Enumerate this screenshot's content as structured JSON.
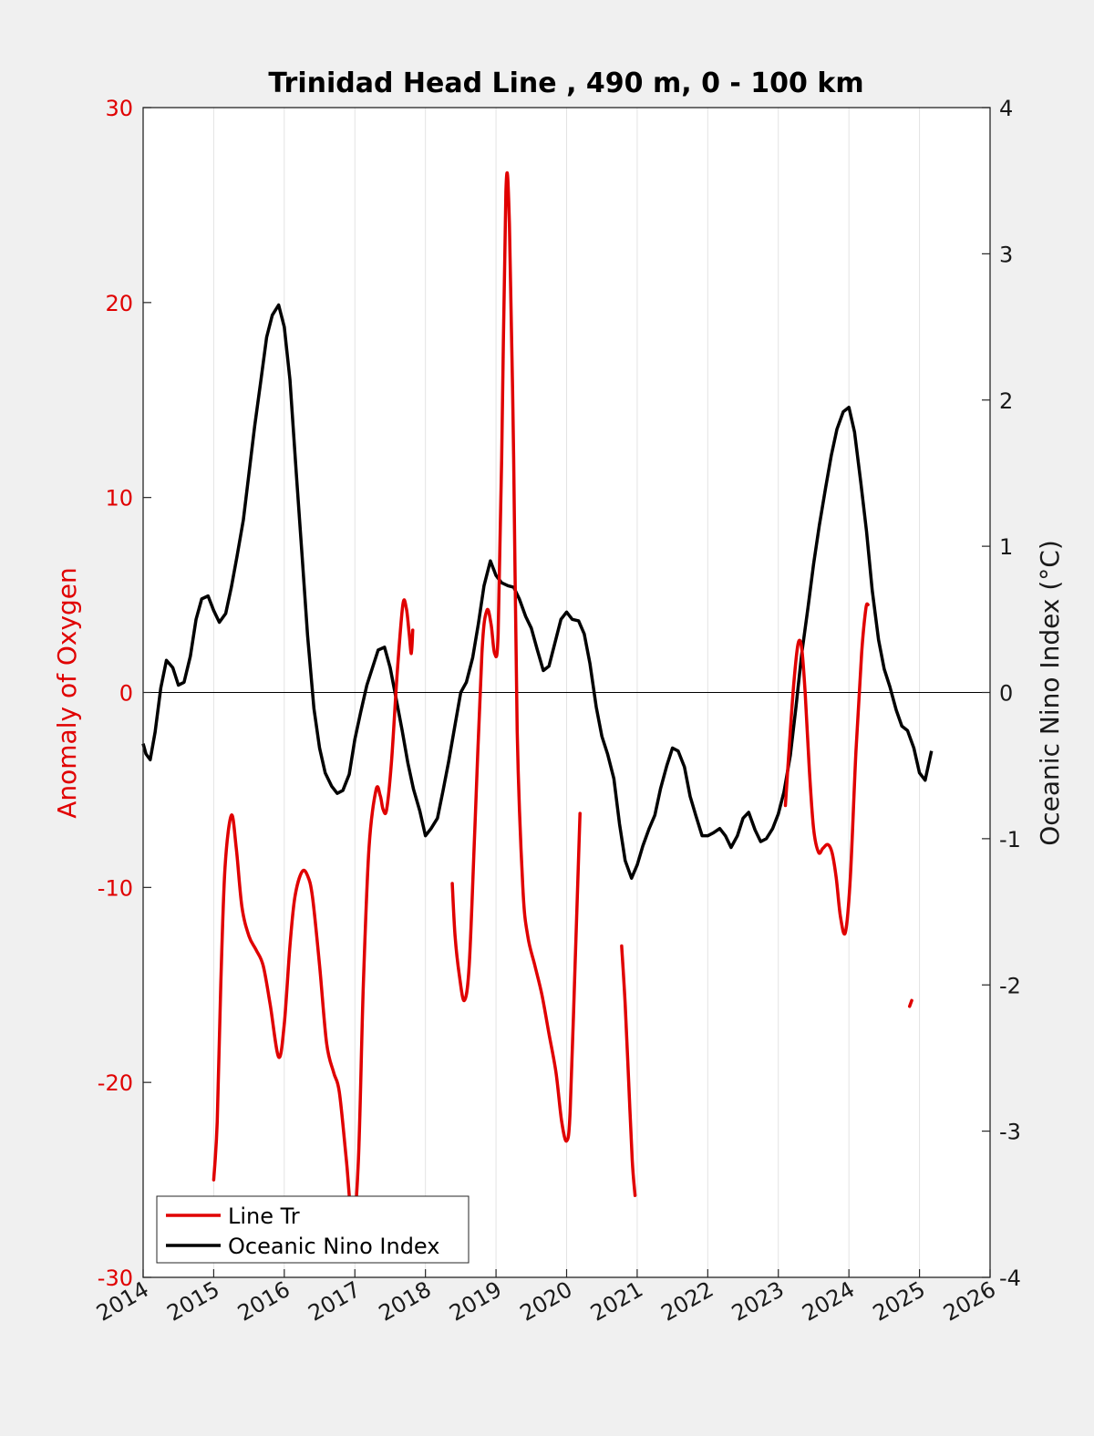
{
  "chart_data": {
    "type": "line",
    "title": "Trinidad Head Line , 490 m, 0 - 100 km",
    "xlabel": "",
    "ylabel_left": "Anomaly of Oxygen",
    "ylabel_right": "Oceanic Nino Index (°C)",
    "xlim": [
      2014,
      2026
    ],
    "ylim_left": [
      -30,
      30
    ],
    "ylim_right": [
      -4,
      4
    ],
    "x_ticks": [
      2014,
      2015,
      2016,
      2017,
      2018,
      2019,
      2020,
      2021,
      2022,
      2023,
      2024,
      2025,
      2026
    ],
    "y_ticks_left": [
      -30,
      -20,
      -10,
      0,
      10,
      20,
      30
    ],
    "y_ticks_right": [
      -4,
      -3,
      -2,
      -1,
      0,
      1,
      2,
      3,
      4
    ],
    "grid": "vertical lines at x ticks",
    "zero_line": true,
    "legend_position": "bottom-left",
    "colors": {
      "oxygen": "#e00000",
      "oni": "#000000"
    },
    "series": [
      {
        "name": "Line Tr",
        "axis": "left",
        "segments": [
          [
            [
              2015.0,
              -25.0
            ],
            [
              2015.05,
              -22.0
            ],
            [
              2015.1,
              -15.0
            ],
            [
              2015.16,
              -9.0
            ],
            [
              2015.25,
              -6.3
            ],
            [
              2015.32,
              -8.0
            ],
            [
              2015.4,
              -11.0
            ],
            [
              2015.5,
              -12.5
            ],
            [
              2015.6,
              -13.2
            ],
            [
              2015.7,
              -14.0
            ],
            [
              2015.8,
              -16.0
            ],
            [
              2015.92,
              -18.7
            ],
            [
              2016.0,
              -17.0
            ],
            [
              2016.08,
              -13.0
            ],
            [
              2016.15,
              -10.5
            ],
            [
              2016.25,
              -9.2
            ],
            [
              2016.33,
              -9.4
            ],
            [
              2016.4,
              -10.5
            ],
            [
              2016.5,
              -14.0
            ],
            [
              2016.6,
              -18.0
            ],
            [
              2016.7,
              -19.5
            ],
            [
              2016.78,
              -20.5
            ],
            [
              2016.88,
              -24.0
            ],
            [
              2016.97,
              -27.3
            ],
            [
              2017.05,
              -24.0
            ],
            [
              2017.12,
              -15.0
            ],
            [
              2017.2,
              -8.0
            ],
            [
              2017.3,
              -5.0
            ],
            [
              2017.36,
              -5.3
            ],
            [
              2017.4,
              -6.0
            ],
            [
              2017.45,
              -6.0
            ],
            [
              2017.52,
              -3.5
            ],
            [
              2017.6,
              1.0
            ],
            [
              2017.68,
              4.5
            ],
            [
              2017.73,
              4.3
            ],
            [
              2017.77,
              3.0
            ],
            [
              2017.8,
              2.0
            ],
            [
              2017.82,
              3.2
            ]
          ],
          [
            [
              2018.38,
              -9.8
            ],
            [
              2018.42,
              -12.5
            ],
            [
              2018.48,
              -14.5
            ],
            [
              2018.55,
              -15.8
            ],
            [
              2018.62,
              -14.0
            ],
            [
              2018.7,
              -7.0
            ],
            [
              2018.8,
              2.0
            ],
            [
              2018.87,
              4.2
            ],
            [
              2018.93,
              3.5
            ],
            [
              2018.98,
              2.0
            ],
            [
              2019.03,
              3.0
            ],
            [
              2019.08,
              12.0
            ],
            [
              2019.14,
              25.7
            ],
            [
              2019.19,
              24.0
            ],
            [
              2019.25,
              12.0
            ],
            [
              2019.3,
              -2.0
            ],
            [
              2019.38,
              -10.0
            ],
            [
              2019.45,
              -12.5
            ],
            [
              2019.55,
              -14.0
            ],
            [
              2019.65,
              -15.5
            ],
            [
              2019.75,
              -17.5
            ],
            [
              2019.85,
              -19.5
            ],
            [
              2019.93,
              -22.0
            ],
            [
              2020.0,
              -23.0
            ],
            [
              2020.05,
              -21.5
            ],
            [
              2020.12,
              -14.0
            ],
            [
              2020.19,
              -6.2
            ]
          ],
          [
            [
              2020.78,
              -13.0
            ],
            [
              2020.83,
              -16.0
            ],
            [
              2020.88,
              -20.0
            ],
            [
              2020.93,
              -24.0
            ],
            [
              2020.97,
              -25.8
            ]
          ],
          [
            [
              2023.1,
              -5.8
            ],
            [
              2023.16,
              -2.5
            ],
            [
              2023.22,
              0.5
            ],
            [
              2023.28,
              2.5
            ],
            [
              2023.33,
              2.3
            ],
            [
              2023.38,
              0.0
            ],
            [
              2023.44,
              -4.0
            ],
            [
              2023.5,
              -7.0
            ],
            [
              2023.57,
              -8.2
            ],
            [
              2023.63,
              -8.0
            ],
            [
              2023.7,
              -7.8
            ],
            [
              2023.76,
              -8.2
            ],
            [
              2023.82,
              -9.5
            ],
            [
              2023.88,
              -11.5
            ],
            [
              2023.95,
              -12.3
            ],
            [
              2024.02,
              -9.5
            ],
            [
              2024.1,
              -3.0
            ],
            [
              2024.18,
              2.0
            ],
            [
              2024.24,
              4.3
            ],
            [
              2024.27,
              4.5
            ]
          ],
          [
            [
              2024.86,
              -16.1
            ],
            [
              2024.89,
              -15.8
            ]
          ]
        ]
      },
      {
        "name": "Oceanic Nino Index",
        "axis": "right",
        "points": [
          [
            2014.0,
            -0.35
          ],
          [
            2014.04,
            -0.42
          ],
          [
            2014.1,
            -0.46
          ],
          [
            2014.17,
            -0.27
          ],
          [
            2014.25,
            0.03
          ],
          [
            2014.33,
            0.22
          ],
          [
            2014.42,
            0.17
          ],
          [
            2014.5,
            0.05
          ],
          [
            2014.58,
            0.07
          ],
          [
            2014.67,
            0.25
          ],
          [
            2014.75,
            0.5
          ],
          [
            2014.83,
            0.64
          ],
          [
            2014.92,
            0.66
          ],
          [
            2015.0,
            0.56
          ],
          [
            2015.08,
            0.48
          ],
          [
            2015.17,
            0.54
          ],
          [
            2015.25,
            0.72
          ],
          [
            2015.33,
            0.93
          ],
          [
            2015.42,
            1.18
          ],
          [
            2015.5,
            1.5
          ],
          [
            2015.58,
            1.82
          ],
          [
            2015.67,
            2.14
          ],
          [
            2015.75,
            2.43
          ],
          [
            2015.83,
            2.58
          ],
          [
            2015.92,
            2.65
          ],
          [
            2016.0,
            2.5
          ],
          [
            2016.08,
            2.14
          ],
          [
            2016.17,
            1.5
          ],
          [
            2016.25,
            0.95
          ],
          [
            2016.33,
            0.39
          ],
          [
            2016.42,
            -0.11
          ],
          [
            2016.5,
            -0.38
          ],
          [
            2016.58,
            -0.55
          ],
          [
            2016.67,
            -0.64
          ],
          [
            2016.75,
            -0.69
          ],
          [
            2016.83,
            -0.67
          ],
          [
            2016.92,
            -0.56
          ],
          [
            2017.0,
            -0.32
          ],
          [
            2017.08,
            -0.14
          ],
          [
            2017.17,
            0.05
          ],
          [
            2017.25,
            0.17
          ],
          [
            2017.33,
            0.29
          ],
          [
            2017.42,
            0.31
          ],
          [
            2017.5,
            0.17
          ],
          [
            2017.58,
            -0.03
          ],
          [
            2017.67,
            -0.26
          ],
          [
            2017.75,
            -0.48
          ],
          [
            2017.83,
            -0.66
          ],
          [
            2017.92,
            -0.81
          ],
          [
            2018.0,
            -0.98
          ],
          [
            2018.08,
            -0.93
          ],
          [
            2018.17,
            -0.86
          ],
          [
            2018.25,
            -0.67
          ],
          [
            2018.33,
            -0.47
          ],
          [
            2018.42,
            -0.22
          ],
          [
            2018.5,
            0.0
          ],
          [
            2018.58,
            0.07
          ],
          [
            2018.67,
            0.24
          ],
          [
            2018.75,
            0.47
          ],
          [
            2018.83,
            0.73
          ],
          [
            2018.92,
            0.9
          ],
          [
            2019.0,
            0.8
          ],
          [
            2019.08,
            0.75
          ],
          [
            2019.17,
            0.73
          ],
          [
            2019.25,
            0.72
          ],
          [
            2019.33,
            0.64
          ],
          [
            2019.42,
            0.52
          ],
          [
            2019.5,
            0.44
          ],
          [
            2019.58,
            0.3
          ],
          [
            2019.67,
            0.15
          ],
          [
            2019.75,
            0.18
          ],
          [
            2019.83,
            0.33
          ],
          [
            2019.92,
            0.5
          ],
          [
            2020.0,
            0.55
          ],
          [
            2020.08,
            0.5
          ],
          [
            2020.17,
            0.49
          ],
          [
            2020.25,
            0.4
          ],
          [
            2020.33,
            0.2
          ],
          [
            2020.42,
            -0.1
          ],
          [
            2020.5,
            -0.3
          ],
          [
            2020.58,
            -0.42
          ],
          [
            2020.67,
            -0.59
          ],
          [
            2020.75,
            -0.9
          ],
          [
            2020.83,
            -1.15
          ],
          [
            2020.92,
            -1.27
          ],
          [
            2021.0,
            -1.18
          ],
          [
            2021.08,
            -1.05
          ],
          [
            2021.17,
            -0.93
          ],
          [
            2021.25,
            -0.84
          ],
          [
            2021.33,
            -0.66
          ],
          [
            2021.42,
            -0.5
          ],
          [
            2021.5,
            -0.38
          ],
          [
            2021.58,
            -0.4
          ],
          [
            2021.67,
            -0.51
          ],
          [
            2021.75,
            -0.71
          ],
          [
            2021.83,
            -0.84
          ],
          [
            2021.92,
            -0.98
          ],
          [
            2022.0,
            -0.98
          ],
          [
            2022.08,
            -0.96
          ],
          [
            2022.17,
            -0.93
          ],
          [
            2022.25,
            -0.98
          ],
          [
            2022.33,
            -1.06
          ],
          [
            2022.42,
            -0.98
          ],
          [
            2022.5,
            -0.86
          ],
          [
            2022.58,
            -0.82
          ],
          [
            2022.67,
            -0.94
          ],
          [
            2022.75,
            -1.02
          ],
          [
            2022.83,
            -1.0
          ],
          [
            2022.92,
            -0.93
          ],
          [
            2023.0,
            -0.83
          ],
          [
            2023.08,
            -0.68
          ],
          [
            2023.17,
            -0.43
          ],
          [
            2023.25,
            -0.1
          ],
          [
            2023.33,
            0.26
          ],
          [
            2023.42,
            0.58
          ],
          [
            2023.5,
            0.88
          ],
          [
            2023.58,
            1.14
          ],
          [
            2023.67,
            1.4
          ],
          [
            2023.75,
            1.62
          ],
          [
            2023.83,
            1.8
          ],
          [
            2023.92,
            1.92
          ],
          [
            2024.0,
            1.95
          ],
          [
            2024.08,
            1.78
          ],
          [
            2024.17,
            1.43
          ],
          [
            2024.25,
            1.1
          ],
          [
            2024.33,
            0.7
          ],
          [
            2024.42,
            0.36
          ],
          [
            2024.5,
            0.16
          ],
          [
            2024.58,
            0.04
          ],
          [
            2024.67,
            -0.12
          ],
          [
            2024.75,
            -0.23
          ],
          [
            2024.83,
            -0.26
          ],
          [
            2024.92,
            -0.38
          ],
          [
            2025.0,
            -0.55
          ],
          [
            2025.08,
            -0.6
          ],
          [
            2025.17,
            -0.4
          ]
        ]
      }
    ]
  }
}
